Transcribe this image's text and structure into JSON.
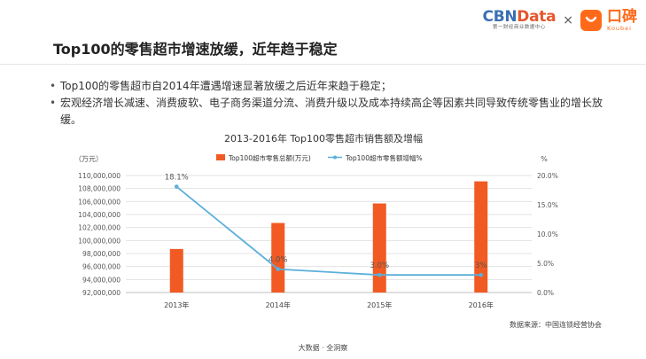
{
  "header": {
    "logo_cbn_part1": "CBN",
    "logo_cbn_part2": "Data",
    "logo_cbn_sub": "第一财经商业数据中心",
    "logo_times": "×",
    "logo_koubei_cn": "口碑",
    "logo_koubei_en": "Koubei"
  },
  "page_title": "Top100的零售超市增速放缓，近年趋于稳定",
  "bullets": [
    "Top100的零售超市自2014年遭遇增速显著放缓之后近年来趋于稳定；",
    "宏观经济增长减速、消费疲软、电子商务渠道分流、消费升级以及成本持续高企等因素共同导致传统零售业的增长放缓。"
  ],
  "source": "数据来源：中国连锁经营协会",
  "footer": "大数据 · 全洞察",
  "colors": {
    "bar": "#f15a22",
    "line": "#5bafdc",
    "text": "#333333"
  },
  "chart_data": {
    "type": "bar",
    "title": "2013-2016年 Top100零售超市销售额及增幅",
    "categories": [
      "2013年",
      "2014年",
      "2015年",
      "2016年"
    ],
    "y_unit_left": "（万元）",
    "y_unit_right": "%",
    "ylim": [
      92000000,
      110000000
    ],
    "yticks": [
      92000000,
      94000000,
      96000000,
      98000000,
      100000000,
      102000000,
      104000000,
      106000000,
      108000000,
      110000000
    ],
    "ytick_labels": [
      "92,000,000",
      "94,000,000",
      "96,000,000",
      "98,000,000",
      "100,000,000",
      "102,000,000",
      "104,000,000",
      "106,000,000",
      "108,000,000",
      "110,000,000"
    ],
    "y2lim": [
      0,
      20
    ],
    "y2ticks": [
      0,
      5,
      10,
      15,
      20
    ],
    "y2tick_labels": [
      "0.0%",
      "5.0%",
      "10.0%",
      "15.0%",
      "20.0%"
    ],
    "grid": true,
    "legend_position": "top",
    "series": [
      {
        "name": "Top100超市零售总额(万元)",
        "type": "bar",
        "axis": "left",
        "values": [
          98700000,
          102700000,
          105700000,
          109100000
        ]
      },
      {
        "name": "Top100超市零售额增幅%",
        "type": "line",
        "axis": "right",
        "values": [
          18.1,
          4.0,
          3.0,
          3.0
        ],
        "labels": [
          "18.1%",
          "4.0%",
          "3.0%",
          "3%"
        ]
      }
    ]
  }
}
